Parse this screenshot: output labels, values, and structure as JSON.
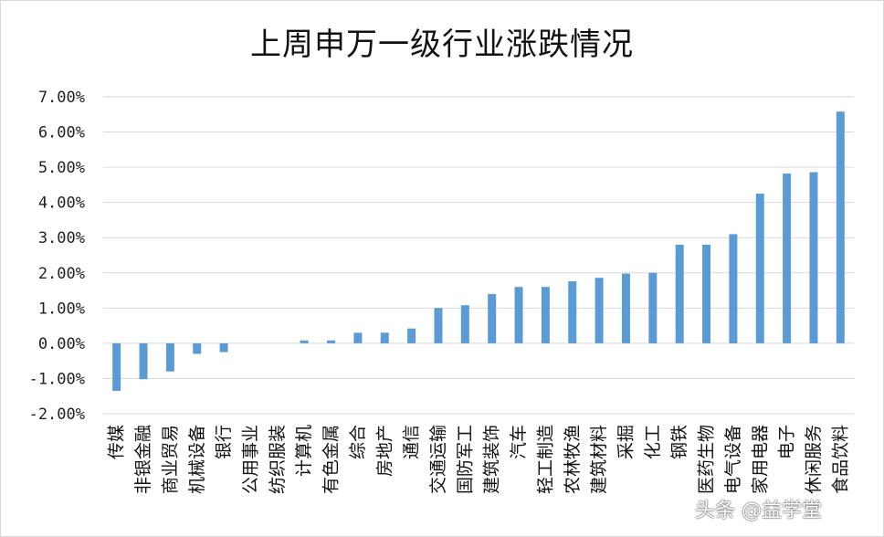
{
  "chart_data": {
    "type": "bar",
    "title": "上周申万一级行业涨跌情况",
    "categories": [
      "传媒",
      "非银金融",
      "商业贸易",
      "机械设备",
      "银行",
      "公用事业",
      "纺织服装",
      "计算机",
      "有色金属",
      "综合",
      "房地产",
      "通信",
      "交通运输",
      "国防军工",
      "建筑装饰",
      "汽车",
      "轻工制造",
      "农林牧渔",
      "建筑材料",
      "采掘",
      "化工",
      "钢铁",
      "医药生物",
      "电气设备",
      "家用电器",
      "电子",
      "休闲服务",
      "食品饮料"
    ],
    "values": [
      -1.35,
      -1.02,
      -0.8,
      -0.3,
      -0.25,
      0.0,
      0.0,
      0.08,
      0.08,
      0.3,
      0.3,
      0.42,
      1.0,
      1.08,
      1.4,
      1.6,
      1.6,
      1.76,
      1.86,
      1.98,
      2.0,
      2.8,
      2.8,
      3.1,
      4.25,
      4.82,
      4.86,
      6.58
    ],
    "ylim": [
      -2.0,
      7.0
    ],
    "yticks": [
      "-2.00%",
      "-1.00%",
      "0.00%",
      "1.00%",
      "2.00%",
      "3.00%",
      "4.00%",
      "5.00%",
      "6.00%",
      "7.00%"
    ],
    "grid": true,
    "bar_color": "#5b9bd5"
  },
  "watermark": "头条 @益学堂"
}
